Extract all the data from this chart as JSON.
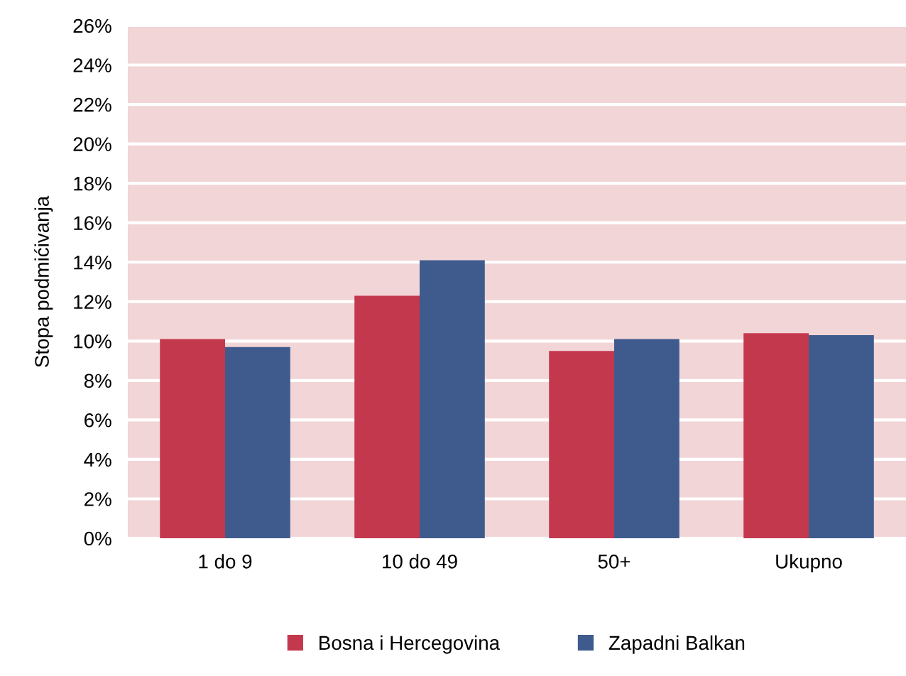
{
  "chart_data": {
    "type": "bar",
    "ylabel": "Stopa podmićivanja",
    "categories": [
      "1 do 9",
      "10 do 49",
      "50+",
      "Ukupno"
    ],
    "series": [
      {
        "name": "Bosna i Hercegovina",
        "color": "#c4384e",
        "values": [
          10.1,
          12.3,
          9.5,
          10.4
        ]
      },
      {
        "name": "Zapadni Balkan",
        "color": "#3f5b8e",
        "values": [
          9.7,
          14.1,
          10.1,
          10.3
        ]
      }
    ],
    "ylim": [
      0,
      26
    ],
    "yticks": [
      {
        "value": 0,
        "label": "0%"
      },
      {
        "value": 2,
        "label": "2%"
      },
      {
        "value": 4,
        "label": "4%"
      },
      {
        "value": 6,
        "label": "6%"
      },
      {
        "value": 8,
        "label": "8%"
      },
      {
        "value": 10,
        "label": "10%"
      },
      {
        "value": 12,
        "label": "12%"
      },
      {
        "value": 14,
        "label": "14%"
      },
      {
        "value": 16,
        "label": "16%"
      },
      {
        "value": 18,
        "label": "18%"
      },
      {
        "value": 20,
        "label": "20%"
      },
      {
        "value": 22,
        "label": "22%"
      },
      {
        "value": 24,
        "label": "24%"
      },
      {
        "value": 26,
        "label": "26%"
      }
    ],
    "grid": "y",
    "legend": "bottom"
  }
}
